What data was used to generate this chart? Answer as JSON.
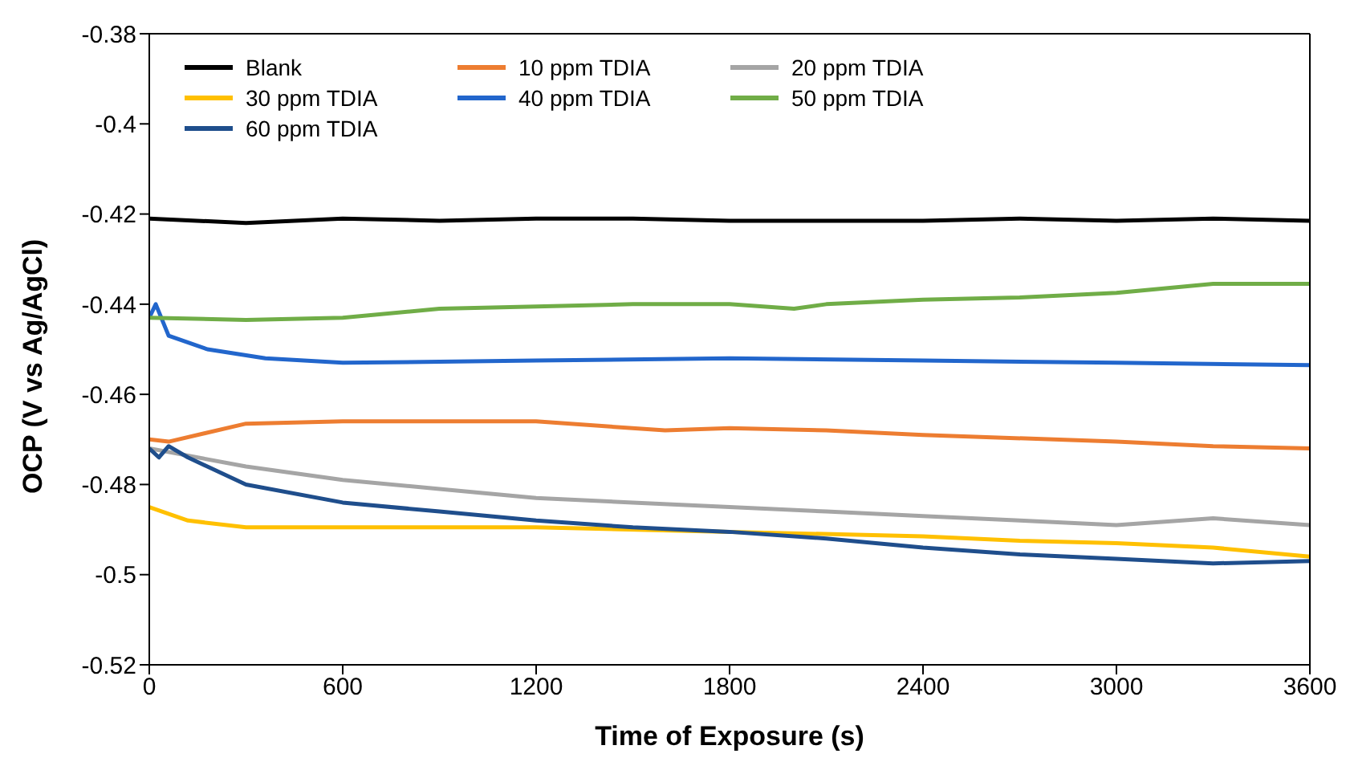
{
  "chart_data": {
    "type": "line",
    "xlabel": "Time of Exposure (s)",
    "ylabel": "OCP (V vs Ag/AgCl)",
    "xlim": [
      0,
      3600
    ],
    "xticks": [
      0,
      600,
      1200,
      1800,
      2400,
      3000,
      3600
    ],
    "ylim": [
      -0.52,
      -0.38
    ],
    "yticks": [
      -0.52,
      -0.5,
      -0.48,
      -0.46,
      -0.44,
      -0.42,
      -0.4,
      -0.38
    ],
    "grid": false,
    "legend": "top",
    "marker": "none",
    "line_style": "solid",
    "series": [
      {
        "name": "Blank",
        "color": "#000000",
        "x": [
          0,
          300,
          600,
          900,
          1200,
          1500,
          1800,
          2100,
          2400,
          2700,
          3000,
          3300,
          3600
        ],
        "values": [
          -0.421,
          -0.422,
          -0.421,
          -0.4215,
          -0.421,
          -0.421,
          -0.4215,
          -0.4215,
          -0.4215,
          -0.421,
          -0.4215,
          -0.421,
          -0.4215
        ]
      },
      {
        "name": "10 ppm TDIA",
        "color": "#ed7d31",
        "x": [
          0,
          60,
          300,
          600,
          900,
          1200,
          1600,
          1800,
          2100,
          2400,
          3000,
          3300,
          3600
        ],
        "values": [
          -0.47,
          -0.4705,
          -0.4665,
          -0.466,
          -0.466,
          -0.466,
          -0.468,
          -0.4675,
          -0.468,
          -0.469,
          -0.4705,
          -0.4715,
          -0.472
        ]
      },
      {
        "name": "20 ppm TDIA",
        "color": "#a5a5a5",
        "x": [
          0,
          300,
          600,
          900,
          1200,
          1500,
          1800,
          2100,
          2400,
          2700,
          3000,
          3300,
          3600
        ],
        "values": [
          -0.472,
          -0.476,
          -0.479,
          -0.481,
          -0.483,
          -0.484,
          -0.485,
          -0.486,
          -0.487,
          -0.488,
          -0.489,
          -0.4875,
          -0.489
        ]
      },
      {
        "name": "30 ppm TDIA",
        "color": "#ffc000",
        "x": [
          0,
          120,
          300,
          600,
          1200,
          1800,
          2400,
          2700,
          3000,
          3300,
          3600
        ],
        "values": [
          -0.485,
          -0.488,
          -0.4895,
          -0.4895,
          -0.4895,
          -0.4905,
          -0.4915,
          -0.4925,
          -0.493,
          -0.494,
          -0.496
        ]
      },
      {
        "name": "40 ppm TDIA",
        "color": "#2266cc",
        "x": [
          0,
          20,
          60,
          180,
          360,
          600,
          1200,
          1800,
          2400,
          3000,
          3600
        ],
        "values": [
          -0.443,
          -0.44,
          -0.447,
          -0.45,
          -0.452,
          -0.453,
          -0.4525,
          -0.452,
          -0.4525,
          -0.453,
          -0.4535
        ]
      },
      {
        "name": "50 ppm TDIA",
        "color": "#70ad47",
        "x": [
          0,
          300,
          600,
          900,
          1200,
          1500,
          1800,
          2000,
          2100,
          2400,
          2700,
          3000,
          3300,
          3600
        ],
        "values": [
          -0.443,
          -0.4435,
          -0.443,
          -0.441,
          -0.4405,
          -0.44,
          -0.44,
          -0.441,
          -0.44,
          -0.439,
          -0.4385,
          -0.4375,
          -0.4355,
          -0.4355
        ]
      },
      {
        "name": "60 ppm TDIA",
        "color": "#1f4e8c",
        "x": [
          0,
          30,
          60,
          120,
          300,
          600,
          900,
          1200,
          1500,
          1800,
          2100,
          2400,
          2700,
          3000,
          3300,
          3600
        ],
        "values": [
          -0.472,
          -0.474,
          -0.4715,
          -0.474,
          -0.48,
          -0.484,
          -0.486,
          -0.488,
          -0.4895,
          -0.4905,
          -0.492,
          -0.494,
          -0.4955,
          -0.4965,
          -0.4975,
          -0.497
        ]
      }
    ]
  }
}
